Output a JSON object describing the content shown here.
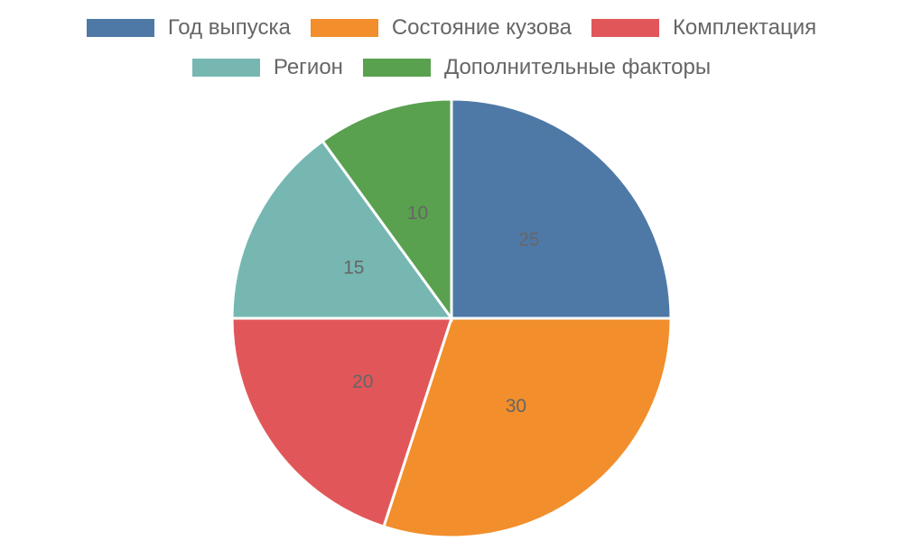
{
  "chart_data": {
    "type": "pie",
    "categories": [
      "Год выпуска",
      "Состояние кузова",
      "Комплектация",
      "Регион",
      "Дополнительные факторы"
    ],
    "values": [
      25,
      30,
      20,
      15,
      10
    ],
    "colors": [
      "#4e79a7",
      "#f28e2b",
      "#e15759",
      "#76b7b2",
      "#59a14f"
    ],
    "legend": "top"
  }
}
